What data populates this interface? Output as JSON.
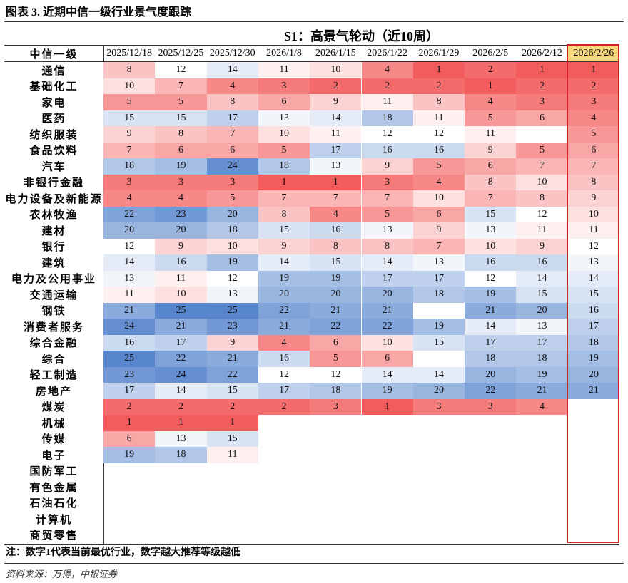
{
  "header": {
    "title": "图表 3. 近期中信一级行业景气度跟踪"
  },
  "table": {
    "title": "S1：高景气轮动（近10周）",
    "header_label": "中信一级",
    "columns": [
      "2025/12/18",
      "2025/12/25",
      "2025/12/30",
      "2026/1/8",
      "2026/1/15",
      "2026/1/22",
      "2026/1/29",
      "2026/2/5",
      "2026/2/12",
      "2026/2/26"
    ],
    "rows": [
      {
        "label": "通信",
        "values": [
          8,
          12,
          14,
          11,
          10,
          4,
          1,
          2,
          1,
          1
        ]
      },
      {
        "label": "基础化工",
        "values": [
          10,
          7,
          4,
          3,
          2,
          2,
          2,
          1,
          2,
          2
        ]
      },
      {
        "label": "家电",
        "values": [
          5,
          5,
          8,
          6,
          9,
          11,
          8,
          4,
          3,
          3
        ]
      },
      {
        "label": "医药",
        "values": [
          15,
          15,
          17,
          13,
          14,
          18,
          11,
          5,
          6,
          4
        ]
      },
      {
        "label": "纺织服装",
        "values": [
          9,
          8,
          7,
          10,
          11,
          12,
          12,
          11,
          null,
          5
        ]
      },
      {
        "label": "食品饮料",
        "values": [
          7,
          6,
          6,
          5,
          17,
          16,
          16,
          9,
          5,
          6
        ]
      },
      {
        "label": "汽车",
        "values": [
          18,
          19,
          24,
          18,
          13,
          9,
          5,
          6,
          7,
          7
        ]
      },
      {
        "label": "非银行金融",
        "values": [
          3,
          3,
          3,
          1,
          1,
          3,
          4,
          8,
          10,
          8
        ]
      },
      {
        "label": "电力设备及新能源",
        "values": [
          4,
          4,
          5,
          7,
          7,
          7,
          10,
          7,
          8,
          9
        ]
      },
      {
        "label": "农林牧渔",
        "values": [
          22,
          23,
          20,
          8,
          4,
          5,
          6,
          15,
          12,
          10
        ]
      },
      {
        "label": "建材",
        "values": [
          20,
          20,
          18,
          15,
          16,
          13,
          9,
          13,
          11,
          11
        ]
      },
      {
        "label": "银行",
        "values": [
          12,
          9,
          10,
          9,
          8,
          8,
          7,
          10,
          9,
          12
        ]
      },
      {
        "label": "建筑",
        "values": [
          14,
          16,
          19,
          14,
          15,
          14,
          13,
          16,
          16,
          13
        ]
      },
      {
        "label": "电力及公用事业",
        "values": [
          13,
          11,
          12,
          19,
          19,
          17,
          17,
          12,
          14,
          14
        ]
      },
      {
        "label": "交通运输",
        "values": [
          11,
          10,
          13,
          20,
          20,
          20,
          18,
          19,
          15,
          15
        ]
      },
      {
        "label": "钢铁",
        "values": [
          21,
          25,
          25,
          22,
          21,
          21,
          null,
          21,
          20,
          16
        ]
      },
      {
        "label": "消费者服务",
        "values": [
          24,
          21,
          23,
          21,
          22,
          22,
          19,
          14,
          13,
          17
        ]
      },
      {
        "label": "综合金融",
        "values": [
          16,
          17,
          9,
          4,
          6,
          10,
          15,
          17,
          17,
          18
        ]
      },
      {
        "label": "综合",
        "values": [
          25,
          22,
          21,
          16,
          5,
          6,
          null,
          18,
          18,
          19
        ]
      },
      {
        "label": "轻工制造",
        "values": [
          23,
          24,
          22,
          12,
          12,
          14,
          14,
          20,
          19,
          20
        ]
      },
      {
        "label": "房地产",
        "values": [
          17,
          14,
          15,
          17,
          18,
          19,
          20,
          22,
          21,
          21
        ]
      },
      {
        "label": "煤炭",
        "values": [
          2,
          2,
          2,
          2,
          3,
          1,
          3,
          3,
          4,
          null
        ]
      },
      {
        "label": "机械",
        "values": [
          1,
          1,
          1,
          null,
          null,
          null,
          null,
          null,
          null,
          null
        ]
      },
      {
        "label": "传媒",
        "values": [
          6,
          13,
          15,
          null,
          null,
          null,
          null,
          null,
          null,
          null
        ]
      },
      {
        "label": "电子",
        "values": [
          19,
          18,
          11,
          null,
          null,
          null,
          null,
          null,
          null,
          null
        ]
      },
      {
        "label": "国防军工",
        "values": [
          null,
          null,
          null,
          null,
          null,
          null,
          null,
          null,
          null,
          null
        ]
      },
      {
        "label": "有色金属",
        "values": [
          null,
          null,
          null,
          null,
          null,
          null,
          null,
          null,
          null,
          null
        ]
      },
      {
        "label": "石油石化",
        "values": [
          null,
          null,
          null,
          null,
          null,
          null,
          null,
          null,
          null,
          null
        ]
      },
      {
        "label": "计算机",
        "values": [
          null,
          null,
          null,
          null,
          null,
          null,
          null,
          null,
          null,
          null
        ]
      },
      {
        "label": "商贸零售",
        "values": [
          null,
          null,
          null,
          null,
          null,
          null,
          null,
          null,
          null,
          null
        ]
      }
    ],
    "note": "注：数字1代表当前最优行业，数字越大推荐等级越低"
  },
  "footer": {
    "source": "资料来源：万得，中银证券"
  }
}
